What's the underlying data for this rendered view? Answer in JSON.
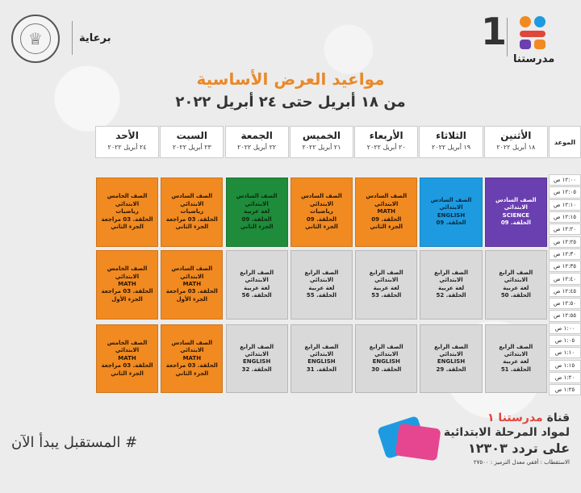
{
  "header": {
    "sponsor": "برعاية",
    "channel_number": "1",
    "channel_name": "مدرستنا",
    "colors": {
      "orange": "#f18a21",
      "red": "#e0473a",
      "blue": "#1e9be0",
      "purple": "#6a3fb0"
    }
  },
  "title": "مواعيد العرض الأساسية",
  "subtitle": "من ١٨ أبريل حتى ٢٤ أبريل ٢٠٢٢",
  "table": {
    "time_header": "الموعد",
    "days": [
      {
        "name": "الأثنين",
        "date": "١٨ أبريل ٢٠٢٢"
      },
      {
        "name": "الثلاثاء",
        "date": "١٩ أبريل ٢٠٢٢"
      },
      {
        "name": "الأربعاء",
        "date": "٢٠ أبريل ٢٠٢٢"
      },
      {
        "name": "الخميس",
        "date": "٢١ أبريل ٢٠٢٢"
      },
      {
        "name": "الجمعة",
        "date": "٢٢ أبريل ٢٠٢٢"
      },
      {
        "name": "السبت",
        "date": "٢٣ أبريل ٢٠٢٢"
      },
      {
        "name": "الأحد",
        "date": "٢٤ أبريل ٢٠٢٢"
      }
    ],
    "times": [
      "١٢:٠٠ ص",
      "١٢:٠٥ ص",
      "١٢:١٠ ص",
      "١٢:١٥ ص",
      "١٢:٢٠ ص",
      "١٢:٢٥ ص",
      "١٢:٣٠ ص",
      "١٢:٣٥ ص",
      "١٢:٤٠ ص",
      "١٢:٤٥ ص",
      "١٢:٥٠ ص",
      "١٢:٥٥ ص",
      "١:٠٠ ص",
      "١:٠٥ ص",
      "١:١٠ ص",
      "١:١٥ ص",
      "١:٢٠ ص",
      "١:٢٥ ص"
    ],
    "blocks": [
      [
        {
          "lines": [
            "الصف السادس الابتدائي",
            "SCIENCE",
            "الحلقة. 09"
          ],
          "color": "purple"
        },
        {
          "lines": [
            "الصف السادس الابتدائي",
            "ENGLISH",
            "الحلقة. 09"
          ],
          "color": "blue"
        },
        {
          "lines": [
            "الصف السادس الابتدائي",
            "MATH",
            "الحلقة. 09",
            "الجزء الثاني"
          ],
          "color": "orange"
        },
        {
          "lines": [
            "الصف السادس الابتدائي",
            "رياضيات",
            "الحلقة. 09",
            "الجزء الثاني"
          ],
          "color": "orange"
        },
        {
          "lines": [
            "الصف السادس الابتدائي",
            "لغة عربية",
            "الحلقة. 09",
            "الجزء الثاني"
          ],
          "color": "green"
        },
        {
          "lines": [
            "الصف السادس الابتدائي",
            "رياضيات",
            "الحلقة. 03 مراجعة",
            "الجزء الثاني"
          ],
          "color": "orange"
        },
        {
          "lines": [
            "الصف الخامس الابتدائي",
            "رياضيات",
            "الحلقة. 03 مراجعة",
            "الجزء الثاني"
          ],
          "color": "orange"
        }
      ],
      [
        {
          "lines": [
            "الصف الرابع الابتدائي",
            "لغة عربية",
            "الحلقة. 50"
          ],
          "color": "gray"
        },
        {
          "lines": [
            "الصف الرابع الابتدائي",
            "لغة عربية",
            "الحلقة. 52"
          ],
          "color": "gray"
        },
        {
          "lines": [
            "الصف الرابع الابتدائي",
            "لغة عربية",
            "الحلقة. 53"
          ],
          "color": "gray"
        },
        {
          "lines": [
            "الصف الرابع الابتدائي",
            "لغة عربية",
            "الحلقة. 55"
          ],
          "color": "gray"
        },
        {
          "lines": [
            "الصف الرابع الابتدائي",
            "لغة عربية",
            "الحلقة. 56"
          ],
          "color": "gray"
        },
        {
          "lines": [
            "الصف السادس الابتدائي",
            "MATH",
            "الحلقة. 03 مراجعة",
            "الجزء الأول"
          ],
          "color": "orange"
        },
        {
          "lines": [
            "الصف الخامس الابتدائي",
            "MATH",
            "الحلقة. 03 مراجعة",
            "الجزء الأول"
          ],
          "color": "orange"
        }
      ],
      [
        {
          "lines": [
            "الصف الرابع الابتدائي",
            "لغة عربية",
            "الحلقة. 51"
          ],
          "color": "gray"
        },
        {
          "lines": [
            "الصف الرابع الابتدائي",
            "ENGLISH",
            "الحلقة. 29"
          ],
          "color": "gray"
        },
        {
          "lines": [
            "الصف الرابع الابتدائي",
            "ENGLISH",
            "الحلقة. 30"
          ],
          "color": "gray"
        },
        {
          "lines": [
            "الصف الرابع الابتدائي",
            "ENGLISH",
            "الحلقة. 31"
          ],
          "color": "gray"
        },
        {
          "lines": [
            "الصف الرابع الابتدائي",
            "ENGLISH",
            "الحلقة. 32"
          ],
          "color": "gray"
        },
        {
          "lines": [
            "الصف السادس الابتدائي",
            "MATH",
            "الحلقة. 03 مراجعة",
            "الجزء الثاني"
          ],
          "color": "orange"
        },
        {
          "lines": [
            "الصف الخامس الابتدائي",
            "MATH",
            "الحلقة. 03 مراجعة",
            "الجزء الثاني"
          ],
          "color": "orange"
        }
      ]
    ]
  },
  "footer": {
    "hashtag": "# المستقبل يبدأ الآن",
    "line1_a": "قناة",
    "line1_b": "مدرستنا ١",
    "line2": "لمواد المرحلة الابتدائية",
    "line3": "على تردد ١٢٣٠٣",
    "line4": "الاستقطاب : أفقي معدل الترميز : ٢٧٥٠٠"
  }
}
